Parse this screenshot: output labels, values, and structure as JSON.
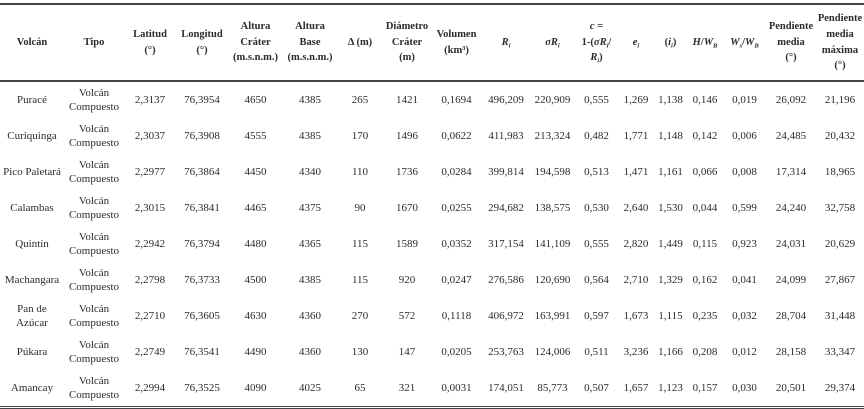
{
  "table": {
    "columns": [
      {
        "id": "volcan",
        "label": [
          [
            "Volcán"
          ]
        ]
      },
      {
        "id": "tipo",
        "label": [
          [
            "Tipo"
          ]
        ]
      },
      {
        "id": "latitud",
        "label": [
          [
            "Latitud"
          ],
          [
            "(°)"
          ]
        ]
      },
      {
        "id": "longitud",
        "label": [
          [
            "Longitud"
          ],
          [
            "(°)"
          ]
        ]
      },
      {
        "id": "altura-crater",
        "label": [
          [
            "Altura"
          ],
          [
            "Cráter"
          ],
          [
            "(m.s.n.m.)"
          ]
        ]
      },
      {
        "id": "altura-base",
        "label": [
          [
            "Altura Base"
          ],
          [
            "(m.s.n.m.)"
          ]
        ]
      },
      {
        "id": "delta",
        "label": [
          [
            "Δ (m)"
          ]
        ]
      },
      {
        "id": "diametro-crater",
        "label": [
          [
            "Diámetro"
          ],
          [
            "Cráter"
          ],
          [
            "(m)"
          ]
        ]
      },
      {
        "id": "volumen",
        "label": [
          [
            "Volumen"
          ],
          [
            "(km³)"
          ]
        ]
      },
      {
        "id": "ri",
        "label": [
          [
            {
              "t": "R",
              "it": true
            },
            {
              "t": "i",
              "it": true,
              "sub": true
            }
          ]
        ]
      },
      {
        "id": "sigma-ri",
        "label": [
          [
            {
              "t": "σR",
              "it": true
            },
            {
              "t": "i",
              "it": true,
              "sub": true
            }
          ]
        ]
      },
      {
        "id": "c",
        "label": [
          [
            {
              "t": "c",
              "it": true
            },
            {
              "t": " ="
            }
          ],
          [
            {
              "t": "1-("
            },
            {
              "t": "σR",
              "it": true
            },
            {
              "t": "i",
              "it": true,
              "sub": true
            },
            {
              "t": "/"
            }
          ],
          [
            {
              "t": "R",
              "it": true
            },
            {
              "t": "i",
              "it": true,
              "sub": true
            },
            {
              "t": ")"
            }
          ]
        ]
      },
      {
        "id": "ei",
        "label": [
          [
            {
              "t": "e",
              "it": true
            },
            {
              "t": "i",
              "it": true,
              "sub": true
            }
          ]
        ]
      },
      {
        "id": "ii",
        "label": [
          [
            {
              "t": "("
            },
            {
              "t": "i",
              "it": true
            },
            {
              "t": "i",
              "it": true,
              "sub": true
            },
            {
              "t": ")"
            }
          ]
        ]
      },
      {
        "id": "h-wb",
        "label": [
          [
            {
              "t": "H",
              "it": true
            },
            {
              "t": "/"
            },
            {
              "t": "W",
              "it": true
            },
            {
              "t": "B",
              "it": true,
              "sub": true
            }
          ]
        ]
      },
      {
        "id": "ws-wb",
        "label": [
          [
            {
              "t": "W",
              "it": true
            },
            {
              "t": "s",
              "it": true,
              "sub": true
            },
            {
              "t": "/"
            },
            {
              "t": "W",
              "it": true
            },
            {
              "t": "B",
              "it": true,
              "sub": true
            }
          ]
        ]
      },
      {
        "id": "pendiente-media",
        "label": [
          [
            "Pendiente"
          ],
          [
            "media"
          ],
          [
            "(°)"
          ]
        ]
      },
      {
        "id": "pendiente-media-maxima",
        "label": [
          [
            "Pendiente"
          ],
          [
            "media"
          ],
          [
            "máxima"
          ],
          [
            "(°)"
          ]
        ]
      }
    ],
    "rows": [
      {
        "volcan": "Puracé",
        "tipo": "Volcán Compuesto",
        "values": [
          "2,3137",
          "76,3954",
          "4650",
          "4385",
          "265",
          "1421",
          "0,1694",
          "496,209",
          "220,909",
          "0,555",
          "1,269",
          "1,138",
          "0,146",
          "0,019",
          "26,092",
          "21,196"
        ]
      },
      {
        "volcan": "Curiquinga",
        "tipo": "Volcán Compuesto",
        "values": [
          "2,3037",
          "76,3908",
          "4555",
          "4385",
          "170",
          "1496",
          "0,0622",
          "411,983",
          "213,324",
          "0,482",
          "1,771",
          "1,148",
          "0,142",
          "0,006",
          "24,485",
          "20,432"
        ]
      },
      {
        "volcan": "Pico Paletará",
        "tipo": "Volcán Compuesto",
        "values": [
          "2,2977",
          "76,3864",
          "4450",
          "4340",
          "110",
          "1736",
          "0,0284",
          "399,814",
          "194,598",
          "0,513",
          "1,471",
          "1,161",
          "0,066",
          "0,008",
          "17,314",
          "18,965"
        ]
      },
      {
        "volcan": "Calambas",
        "tipo": "Volcán Compuesto",
        "values": [
          "2,3015",
          "76,3841",
          "4465",
          "4375",
          "90",
          "1670",
          "0,0255",
          "294,682",
          "138,575",
          "0,530",
          "2,640",
          "1,530",
          "0,044",
          "0,599",
          "24,240",
          "32,758"
        ]
      },
      {
        "volcan": "Quintín",
        "tipo": "Volcán Compuesto",
        "values": [
          "2,2942",
          "76,3794",
          "4480",
          "4365",
          "115",
          "1589",
          "0,0352",
          "317,154",
          "141,109",
          "0,555",
          "2,820",
          "1,449",
          "0,115",
          "0,923",
          "24,031",
          "20,629"
        ]
      },
      {
        "volcan": "Machangara",
        "tipo": "Volcán Compuesto",
        "values": [
          "2,2798",
          "76,3733",
          "4500",
          "4385",
          "115",
          "920",
          "0,0247",
          "276,586",
          "120,690",
          "0,564",
          "2,710",
          "1,329",
          "0,162",
          "0,041",
          "24,099",
          "27,867"
        ]
      },
      {
        "volcan": "Pan de Azúcar",
        "tipo": "Volcán Compuesto",
        "values": [
          "2,2710",
          "76,3605",
          "4630",
          "4360",
          "270",
          "572",
          "0,1118",
          "406,972",
          "163,991",
          "0,597",
          "1,673",
          "1,115",
          "0,235",
          "0,032",
          "28,704",
          "31,448"
        ]
      },
      {
        "volcan": "Púkara",
        "tipo": "Volcán Compuesto",
        "values": [
          "2,2749",
          "76,3541",
          "4490",
          "4360",
          "130",
          "147",
          "0,0205",
          "253,763",
          "124,006",
          "0,511",
          "3,236",
          "1,166",
          "0,208",
          "0,012",
          "28,158",
          "33,347"
        ]
      },
      {
        "volcan": "Amancay",
        "tipo": "Volcán Compuesto",
        "values": [
          "2,2994",
          "76,3525",
          "4090",
          "4025",
          "65",
          "321",
          "0,0031",
          "174,051",
          "85,773",
          "0,507",
          "1,657",
          "1,123",
          "0,157",
          "0,030",
          "20,501",
          "29,374"
        ]
      }
    ]
  }
}
